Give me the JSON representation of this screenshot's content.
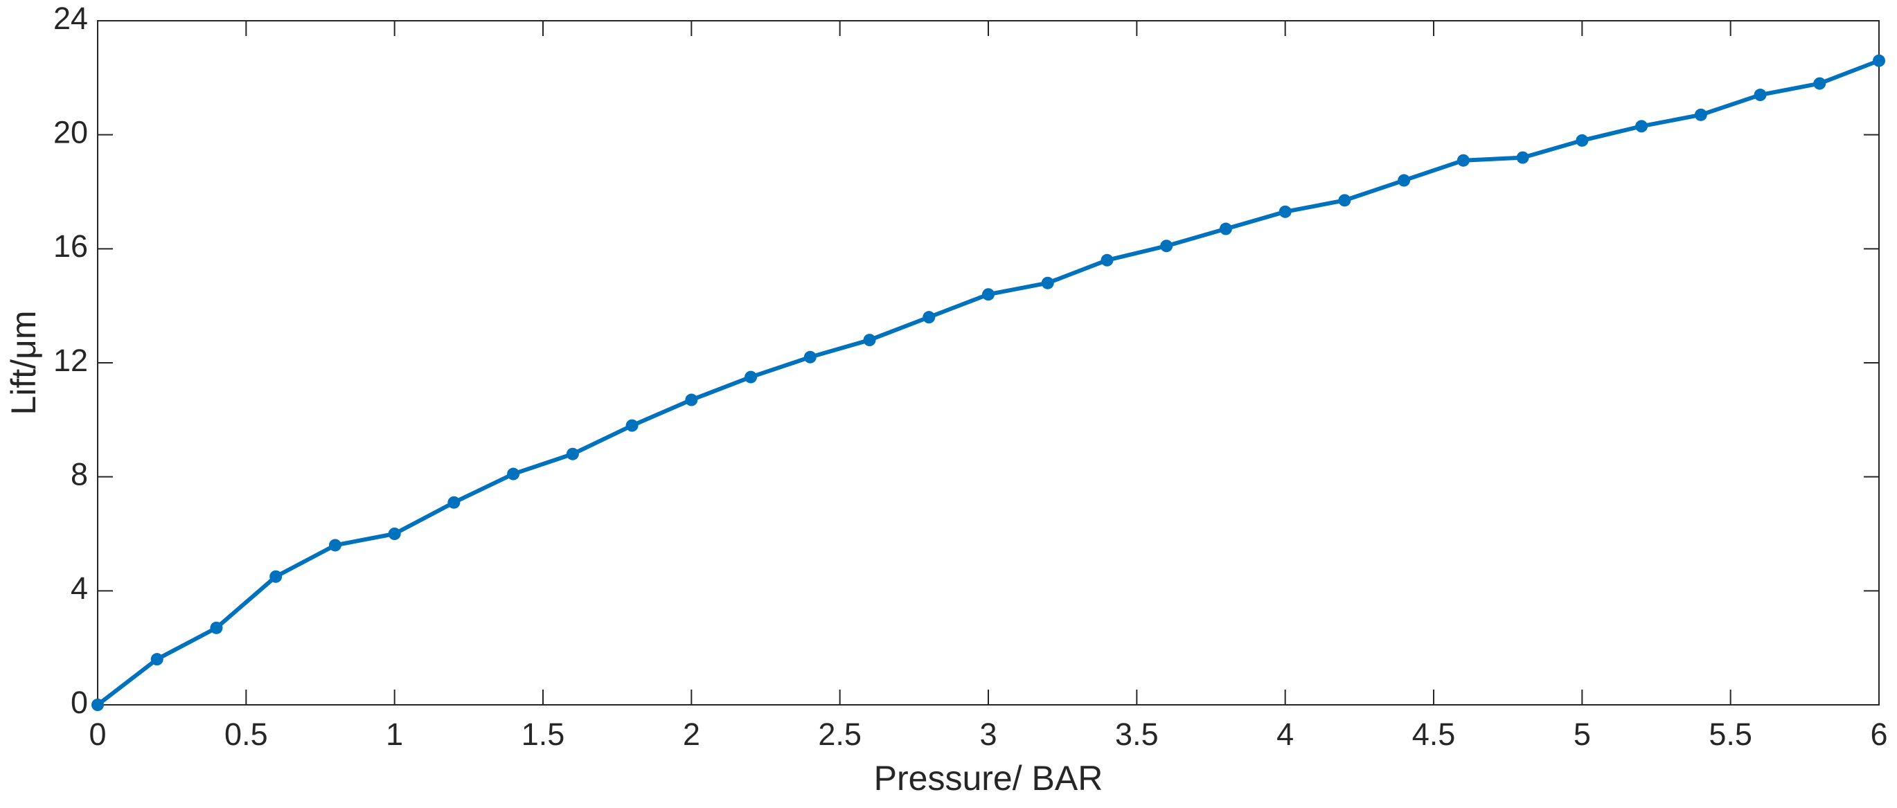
{
  "chart_data": {
    "type": "line",
    "x_label": "Pressure/ BAR",
    "y_label": "Lift/μm",
    "x": [
      0,
      0.2,
      0.4,
      0.6,
      0.8,
      1.0,
      1.2,
      1.4,
      1.6,
      1.8,
      2.0,
      2.2,
      2.4,
      2.6,
      2.8,
      3.0,
      3.2,
      3.4,
      3.6,
      3.8,
      4.0,
      4.2,
      4.4,
      4.6,
      4.8,
      5.0,
      5.2,
      5.4,
      5.6,
      5.8,
      6.0
    ],
    "values": [
      0,
      1.6,
      2.7,
      4.5,
      5.6,
      6.0,
      7.1,
      8.1,
      8.8,
      9.8,
      10.7,
      11.5,
      12.2,
      12.8,
      13.6,
      14.4,
      14.8,
      15.6,
      16.1,
      16.7,
      17.3,
      17.7,
      18.4,
      19.1,
      19.2,
      19.8,
      20.3,
      20.7,
      21.4,
      21.8,
      22.6
    ],
    "color": "#0072bd",
    "xlim": [
      0,
      6
    ],
    "xticks": [
      0,
      0.5,
      1,
      1.5,
      2,
      2.5,
      3,
      3.5,
      4,
      4.5,
      5,
      5.5,
      6
    ],
    "ylim": [
      0,
      24
    ],
    "yticks": [
      0,
      4,
      8,
      12,
      16,
      20,
      24
    ],
    "grid": false
  }
}
